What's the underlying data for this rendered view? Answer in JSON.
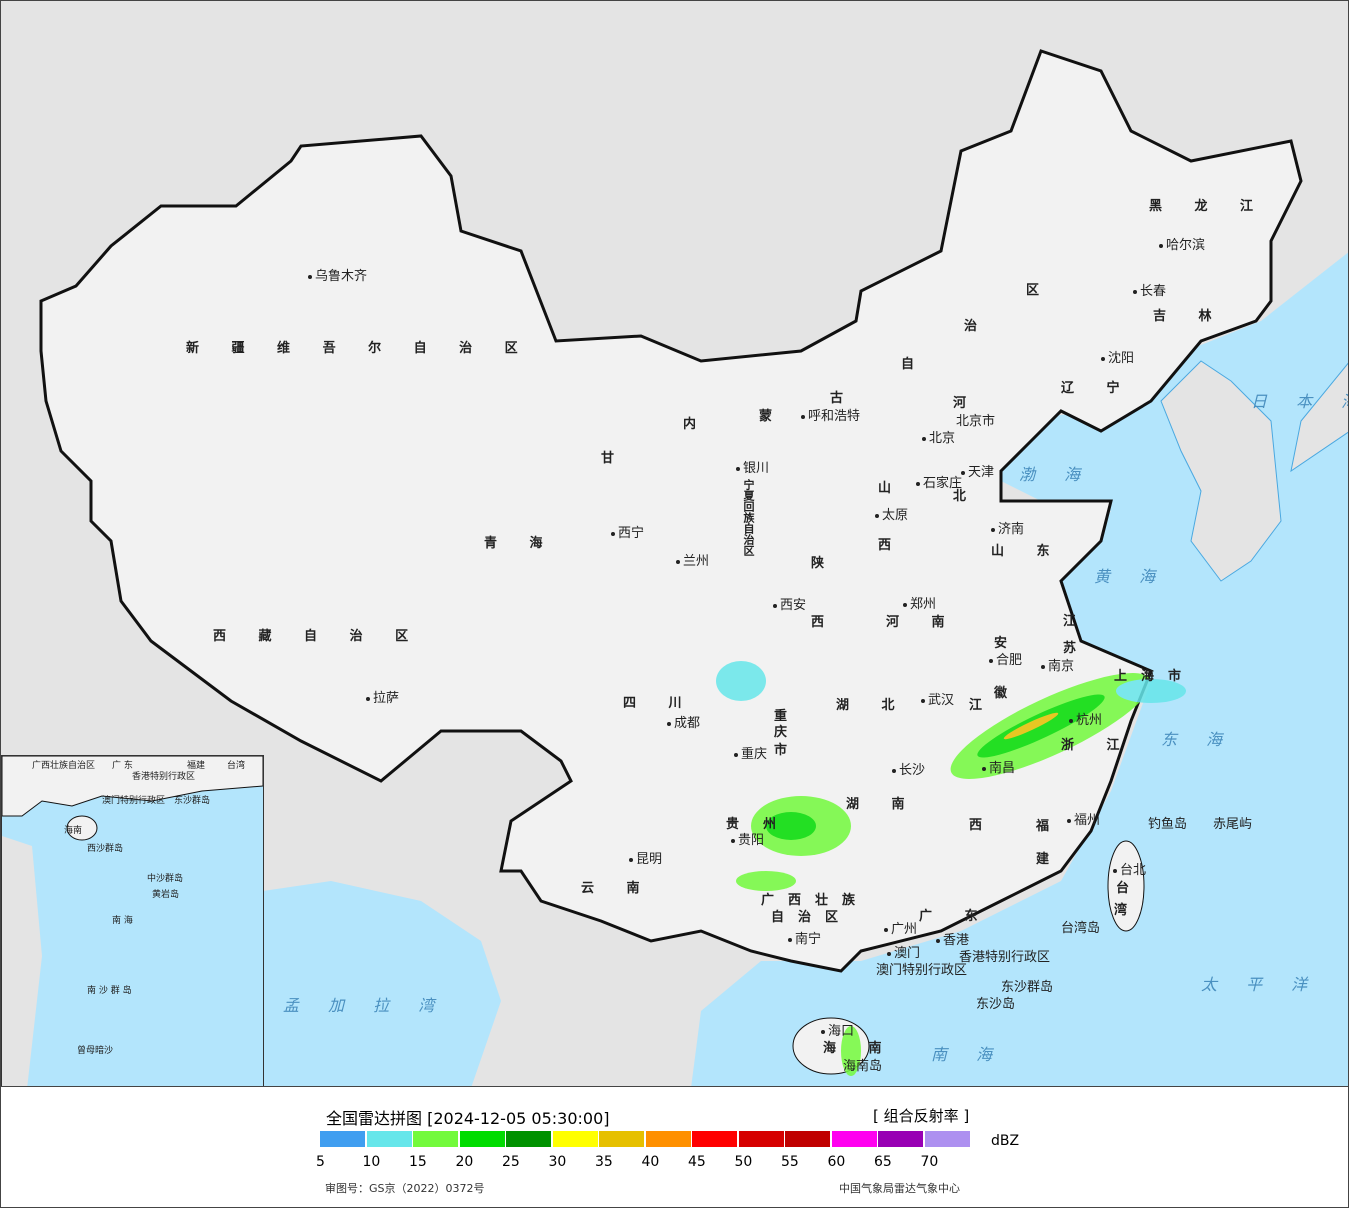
{
  "map": {
    "provinces": [
      "新 疆 维 吾 尔 自 治 区",
      "西 藏 自 治 区",
      "青 海",
      "甘",
      "四 川",
      "云 南",
      "内",
      "蒙",
      "古",
      "自",
      "治",
      "区",
      "黑 龙 江",
      "吉 林",
      "辽 宁",
      "河",
      "北",
      "山",
      "西",
      "陕",
      "西",
      "河 南",
      "山 东",
      "江",
      "苏",
      "安",
      "徽",
      "湖 北",
      "湖 南",
      "江",
      "西",
      "浙 江",
      "福",
      "建",
      "广 东",
      "广西壮族",
      "自治区",
      "海 南",
      "台",
      "湾",
      "重",
      "庆",
      "市",
      "上海市",
      "宁夏回族自治区",
      "贵",
      "州"
    ],
    "cities": [
      "乌鲁木齐",
      "拉萨",
      "西宁",
      "兰州",
      "银川",
      "呼和浩特",
      "北京",
      "天津",
      "石家庄",
      "太原",
      "济南",
      "郑州",
      "西安",
      "成都",
      "重庆",
      "贵阳",
      "昆明",
      "南宁",
      "广州",
      "澳门",
      "香港",
      "海口",
      "长沙",
      "武汉",
      "南昌",
      "合肥",
      "南京",
      "杭州",
      "福州",
      "台北",
      "哈尔滨",
      "长春",
      "沈阳"
    ],
    "extra_labels": [
      "香港特别行政区",
      "澳门特别行政区",
      "东沙群岛",
      "东沙岛",
      "台湾岛",
      "钓鱼岛",
      "赤尾屿",
      "海南岛",
      "北京市"
    ],
    "seas": [
      "日 本 海",
      "渤 海",
      "黄 海",
      "东 海",
      "太 平 洋",
      "南 海",
      "孟 加 拉 湾"
    ],
    "inset_labels": [
      "广西壮族自治区",
      "广 东",
      "福建",
      "台湾",
      "香港特别行政区",
      "澳门特别行政区",
      "东沙群岛",
      "海南",
      "西沙群岛",
      "中沙群岛",
      "南 海",
      "南 沙 群 岛",
      "曾母暗沙",
      "黄岩岛"
    ]
  },
  "legend": {
    "title": "全国雷达拼图 [2024-12-05 05:30:00]",
    "product": "[ 组合反射率 ]",
    "unit": "dBZ",
    "colors": [
      "#409ef0",
      "#66e6ea",
      "#73fa3c",
      "#00dc00",
      "#009100",
      "#ffff00",
      "#e6c000",
      "#ff9000",
      "#ff0000",
      "#d60000",
      "#c00000",
      "#ff00f0",
      "#9800b4",
      "#ad90f0"
    ],
    "ticks": [
      "5",
      "10",
      "15",
      "20",
      "25",
      "30",
      "35",
      "40",
      "45",
      "50",
      "55",
      "60",
      "65",
      "70"
    ],
    "approval": "审图号：GS京（2022）0372号",
    "source": "中国气象局雷达气象中心"
  }
}
